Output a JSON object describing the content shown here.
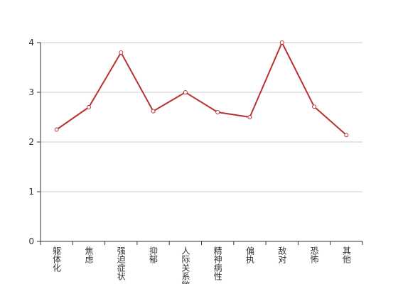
{
  "chart_data": {
    "type": "line",
    "categories": [
      "躯体化",
      "焦虑",
      "强迫症状",
      "抑郁",
      "人际关系敏感",
      "精神病性",
      "偏执",
      "敌对",
      "恐怖",
      "其他"
    ],
    "values": [
      2.25,
      2.7,
      3.8,
      2.62,
      3.0,
      2.6,
      2.5,
      4.0,
      2.71,
      2.14
    ],
    "color": "#b83232",
    "ylim": [
      0,
      4
    ],
    "yticks": [
      0,
      1,
      2,
      3,
      4
    ],
    "grid": true
  }
}
